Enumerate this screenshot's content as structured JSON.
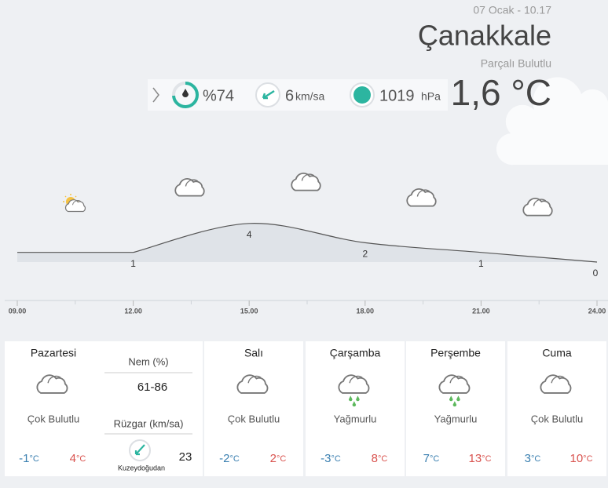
{
  "header": {
    "date": "07 Ocak - 10.17",
    "city": "Çanakkale",
    "condition": "Parçalı Bulutlu",
    "temperature": "1,6 °C"
  },
  "current": {
    "humidity": {
      "value": 74,
      "label": "%74"
    },
    "wind": "6",
    "wind_unit": "km/sa",
    "pressure": "1019",
    "pressure_unit": "hPa"
  },
  "hourly": {
    "times": [
      "09.00",
      "12.00",
      "15.00",
      "18.00",
      "21.00",
      "24.00"
    ],
    "temps": [
      null,
      1,
      4,
      2,
      1,
      0
    ]
  },
  "unit": "°C",
  "days": [
    {
      "name": "Pazartesi",
      "condition": "Çok Bulutlu",
      "min": "-1",
      "max": "4",
      "icon": "cloud"
    },
    {
      "name": "Salı",
      "condition": "Çok Bulutlu",
      "min": "-2",
      "max": "2",
      "icon": "cloud"
    },
    {
      "name": "Çarşamba",
      "condition": "Yağmurlu",
      "min": "-3",
      "max": "8",
      "icon": "rain"
    },
    {
      "name": "Perşembe",
      "condition": "Yağmurlu",
      "min": "7",
      "max": "13",
      "icon": "rain"
    },
    {
      "name": "Cuma",
      "condition": "Çok Bulutlu",
      "min": "3",
      "max": "10",
      "icon": "cloud"
    }
  ],
  "details": {
    "humidity_label": "Nem (%)",
    "humidity_range": "61-86",
    "wind_label": "Rüzgar (km/sa)",
    "wind_speed": "23",
    "wind_direction": "Kuzeydoğudan"
  }
}
